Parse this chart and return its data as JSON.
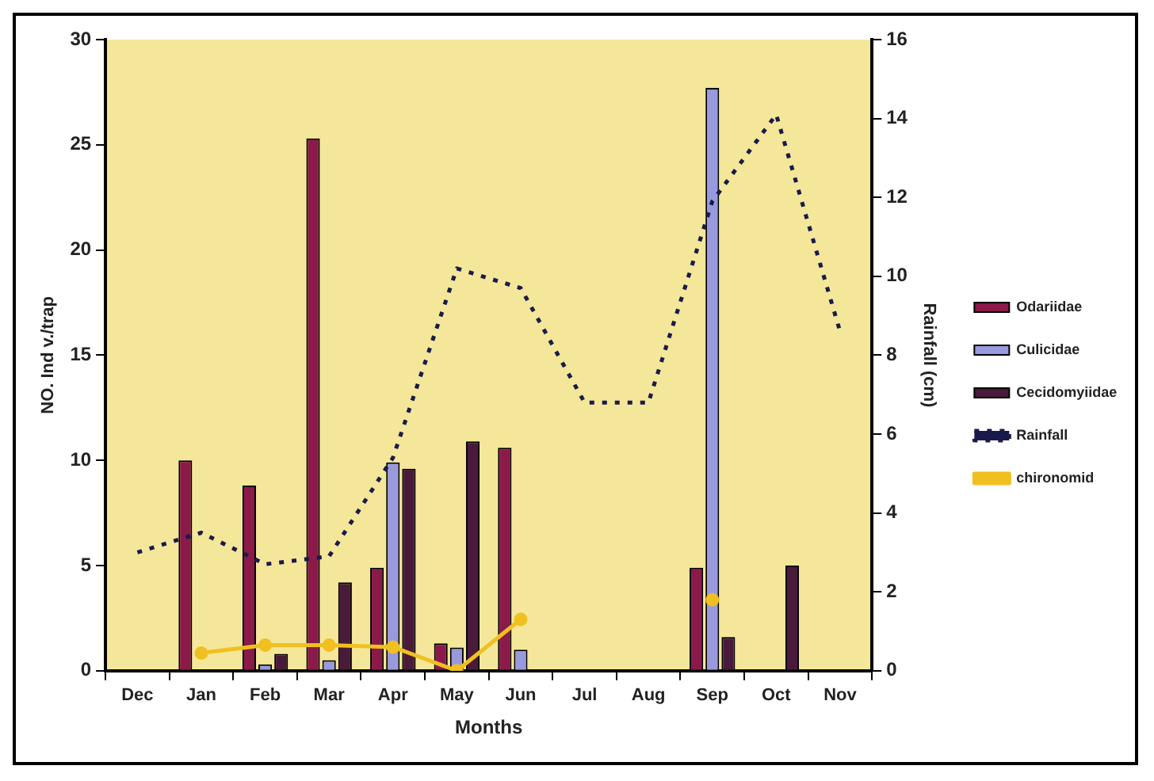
{
  "chart_data": {
    "type": "bar",
    "xlabel": "Months",
    "ylabel": "NO. Ind v./trap",
    "y2label": "Rainfall (cm)",
    "categories": [
      "Dec",
      "Jan",
      "Feb",
      "Mar",
      "Apr",
      "May",
      "Jun",
      "Jul",
      "Aug",
      "Sep",
      "Oct",
      "Nov"
    ],
    "series": [
      {
        "name": "Odariidae",
        "color": "#8b1a4a",
        "values": [
          0,
          10,
          8.8,
          25.3,
          4.9,
          1.3,
          10.6,
          0,
          0,
          4.9,
          0,
          0
        ]
      },
      {
        "name": "Culicidae",
        "color": "#9999dd",
        "values": [
          0,
          0,
          0.3,
          0.5,
          9.9,
          1.1,
          1.0,
          0,
          0,
          27.7,
          0,
          0
        ]
      },
      {
        "name": "Cecidomyiidae",
        "color": "#4a1a3a",
        "values": [
          0,
          0,
          0.8,
          4.2,
          9.6,
          10.9,
          0,
          0,
          0,
          1.6,
          5.0,
          0
        ]
      },
      {
        "name": "Rainfall",
        "type": "line",
        "axis": "y2",
        "color": "#1a1a4a",
        "line_style": "dotted",
        "marker": "none",
        "values": [
          3.0,
          3.5,
          2.7,
          2.9,
          5.4,
          10.2,
          9.7,
          6.8,
          6.8,
          11.9,
          14.1,
          8.6
        ]
      },
      {
        "name": "chironomid",
        "type": "line",
        "axis": "y2",
        "color": "#f0c020",
        "line_style": "solid",
        "marker": "circle",
        "values": [
          null,
          0.45,
          0.65,
          0.65,
          0.6,
          0,
          1.3,
          null,
          null,
          1.8,
          null,
          null
        ]
      }
    ],
    "ylim": [
      0,
      30
    ],
    "yticks": [
      0,
      5,
      10,
      15,
      20,
      25,
      30
    ],
    "y2lim": [
      0,
      16
    ],
    "y2ticks": [
      0,
      2,
      4,
      6,
      8,
      10,
      12,
      14,
      16
    ],
    "grid": false,
    "legend": "right"
  }
}
